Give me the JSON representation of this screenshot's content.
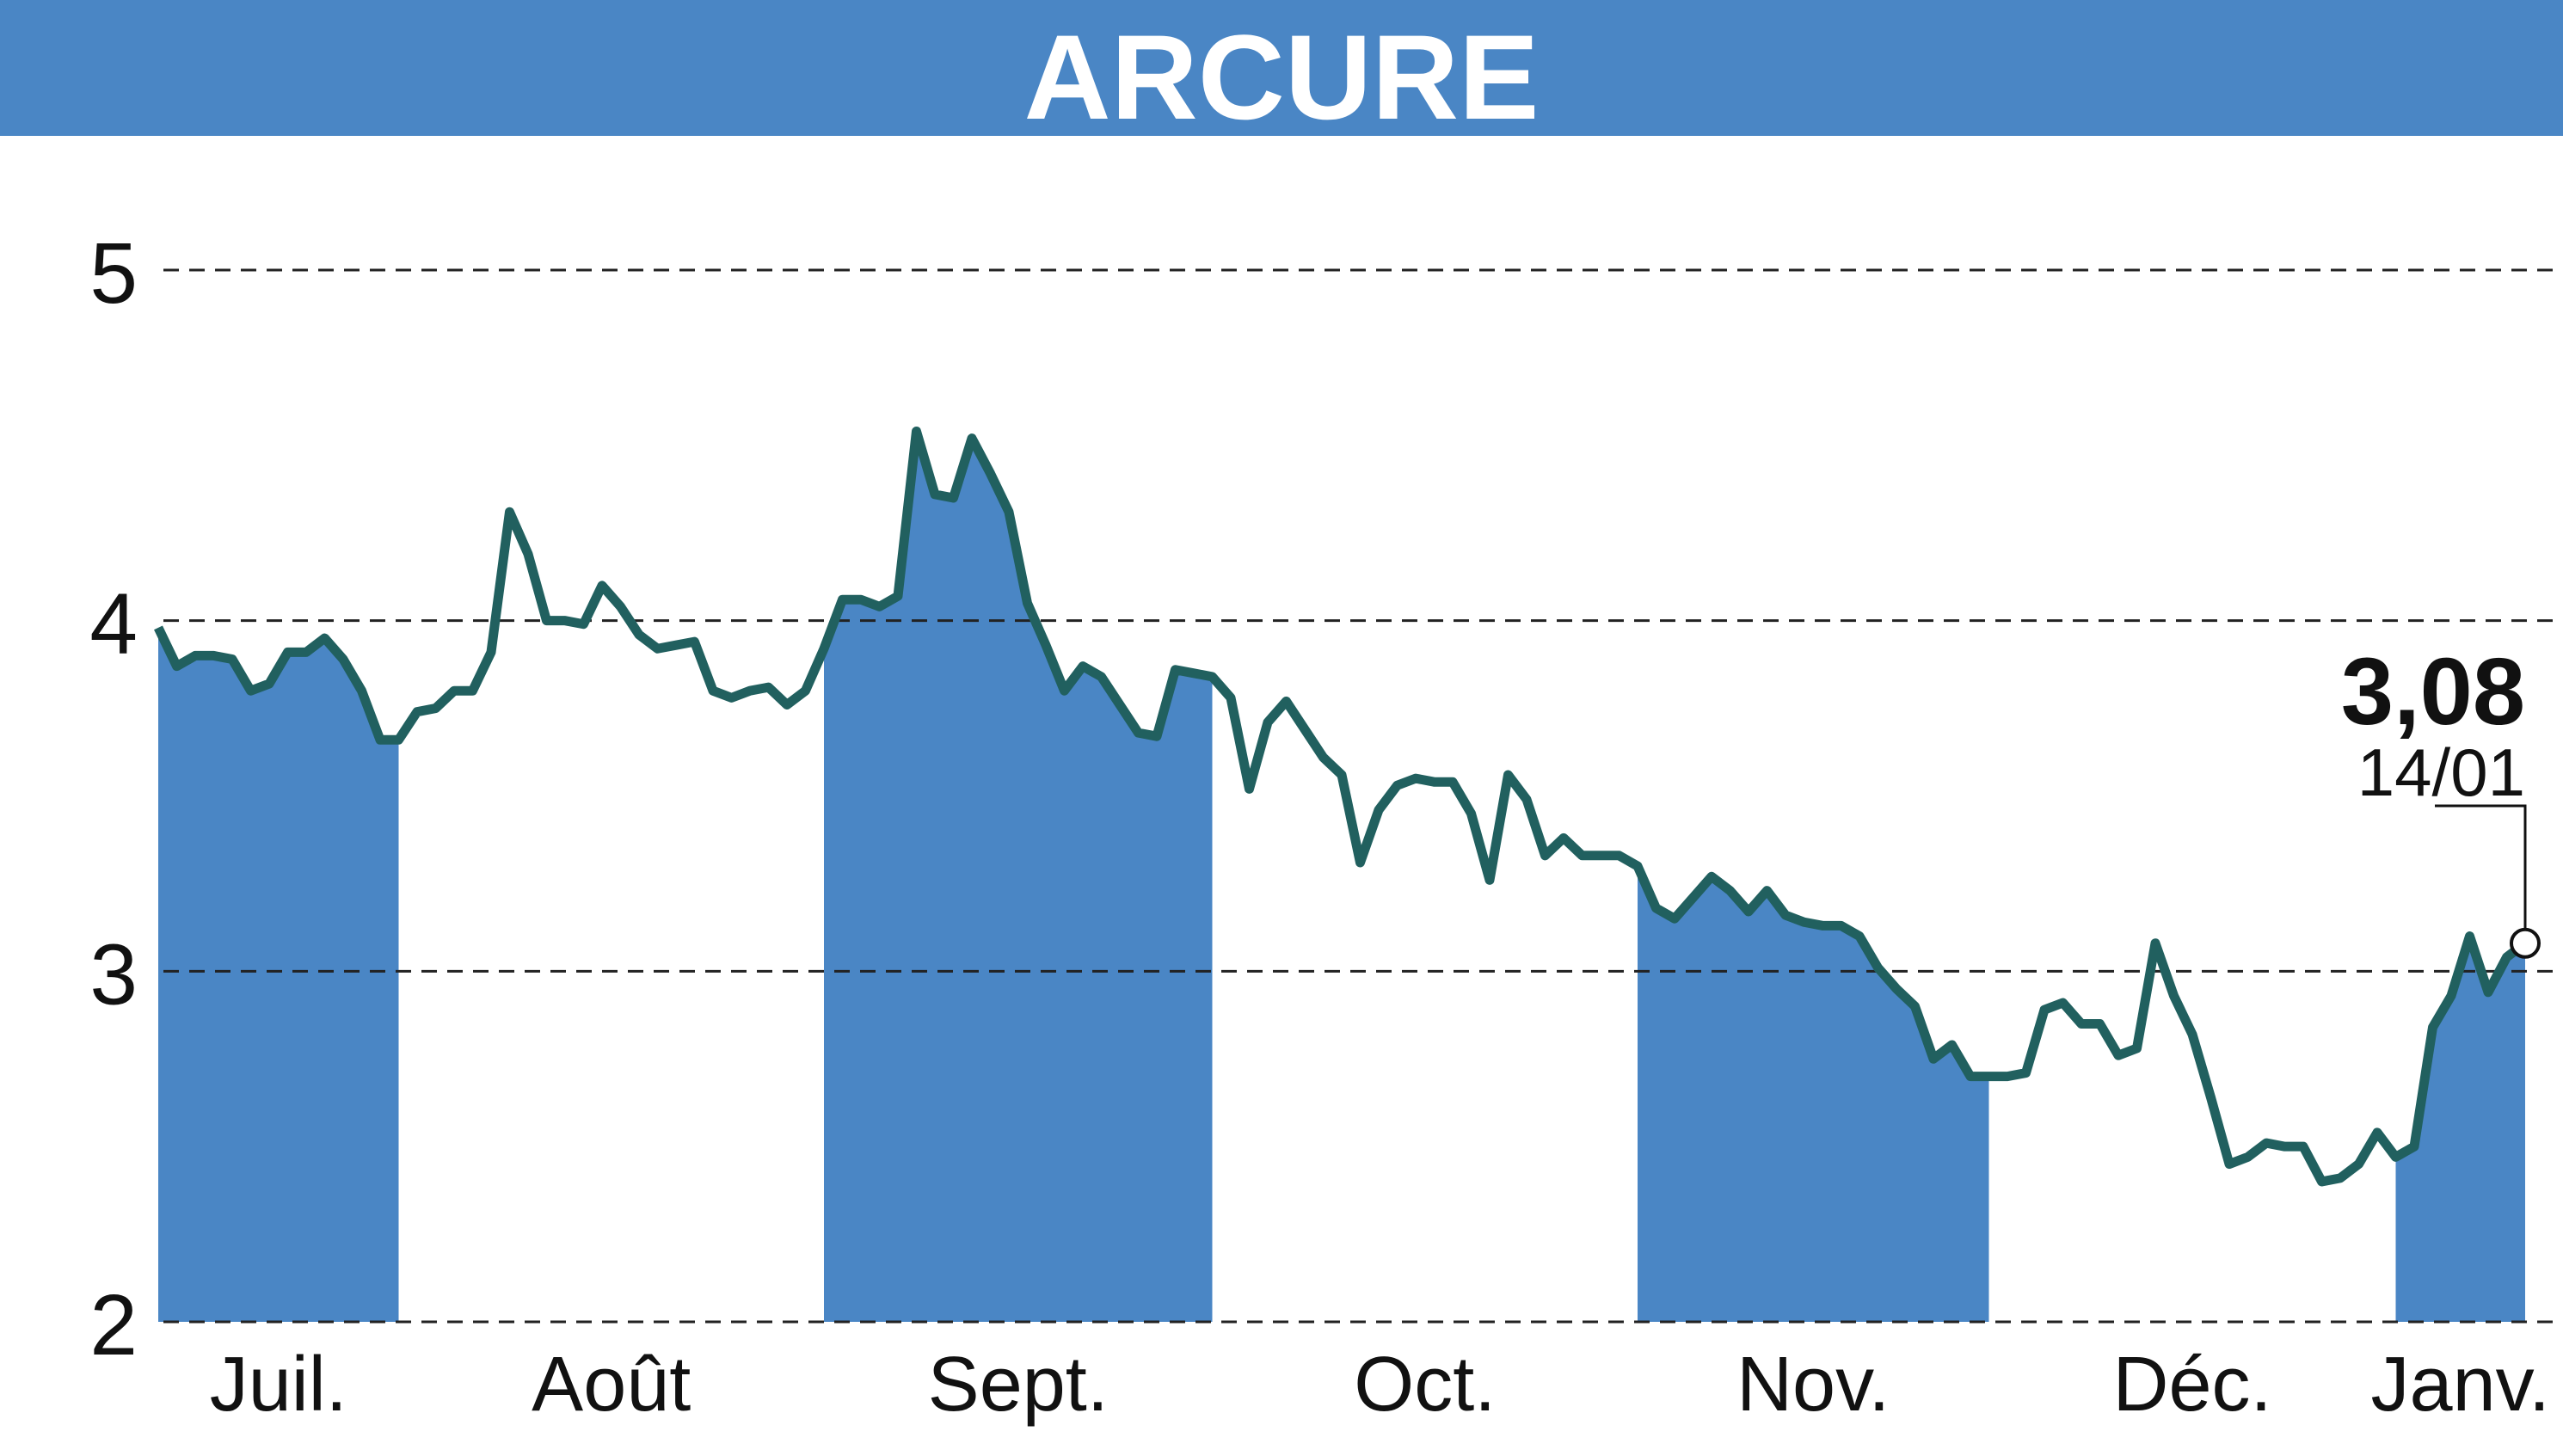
{
  "chart_data": {
    "type": "line",
    "title": "ARCURE",
    "color": "#21605f",
    "shade_color": "#4a86c5",
    "ylim": [
      2,
      5
    ],
    "yticks": [
      2,
      3,
      4,
      5
    ],
    "grid": true,
    "months": [
      {
        "label": "Juil.",
        "values": [
          3.98,
          3.87,
          3.9,
          3.9,
          3.89,
          3.8,
          3.82,
          3.91,
          3.91,
          3.95,
          3.89,
          3.8,
          3.66,
          3.66
        ]
      },
      {
        "label": "Août",
        "values": [
          3.74,
          3.75,
          3.8,
          3.8,
          3.91,
          4.31,
          4.19,
          4.0,
          4.0,
          3.99,
          4.1,
          4.04,
          3.96,
          3.92,
          3.93,
          3.94,
          3.8,
          3.78,
          3.8,
          3.81,
          3.76,
          3.8
        ]
      },
      {
        "label": "Sept.",
        "values": [
          3.92,
          4.06,
          4.06,
          4.04,
          4.07,
          4.54,
          4.36,
          4.35,
          4.52,
          4.42,
          4.31,
          4.05,
          3.93,
          3.8,
          3.87,
          3.84,
          3.76,
          3.68,
          3.67,
          3.86,
          3.85,
          3.84
        ]
      },
      {
        "label": "Oct.",
        "values": [
          3.78,
          3.52,
          3.71,
          3.77,
          3.69,
          3.61,
          3.56,
          3.31,
          3.46,
          3.53,
          3.55,
          3.54,
          3.54,
          3.45,
          3.26,
          3.56,
          3.49,
          3.33,
          3.38,
          3.33,
          3.33,
          3.33
        ]
      },
      {
        "label": "Nov.",
        "values": [
          3.3,
          3.18,
          3.15,
          3.21,
          3.27,
          3.23,
          3.17,
          3.23,
          3.16,
          3.14,
          3.13,
          3.13,
          3.1,
          3.01,
          2.95,
          2.9,
          2.75,
          2.79,
          2.7,
          2.7
        ]
      },
      {
        "label": "Déc.",
        "values": [
          2.7,
          2.71,
          2.89,
          2.91,
          2.85,
          2.85,
          2.76,
          2.78,
          3.08,
          2.93,
          2.82,
          2.64,
          2.45,
          2.47,
          2.51,
          2.5,
          2.5,
          2.4,
          2.41,
          2.45,
          2.54
        ]
      },
      {
        "label": "Janv.",
        "values": [
          2.47,
          2.5,
          2.84,
          2.93,
          3.1,
          2.94,
          3.04,
          3.08
        ]
      }
    ],
    "last_point": {
      "value_label": "3,08",
      "date": "14/01"
    }
  }
}
